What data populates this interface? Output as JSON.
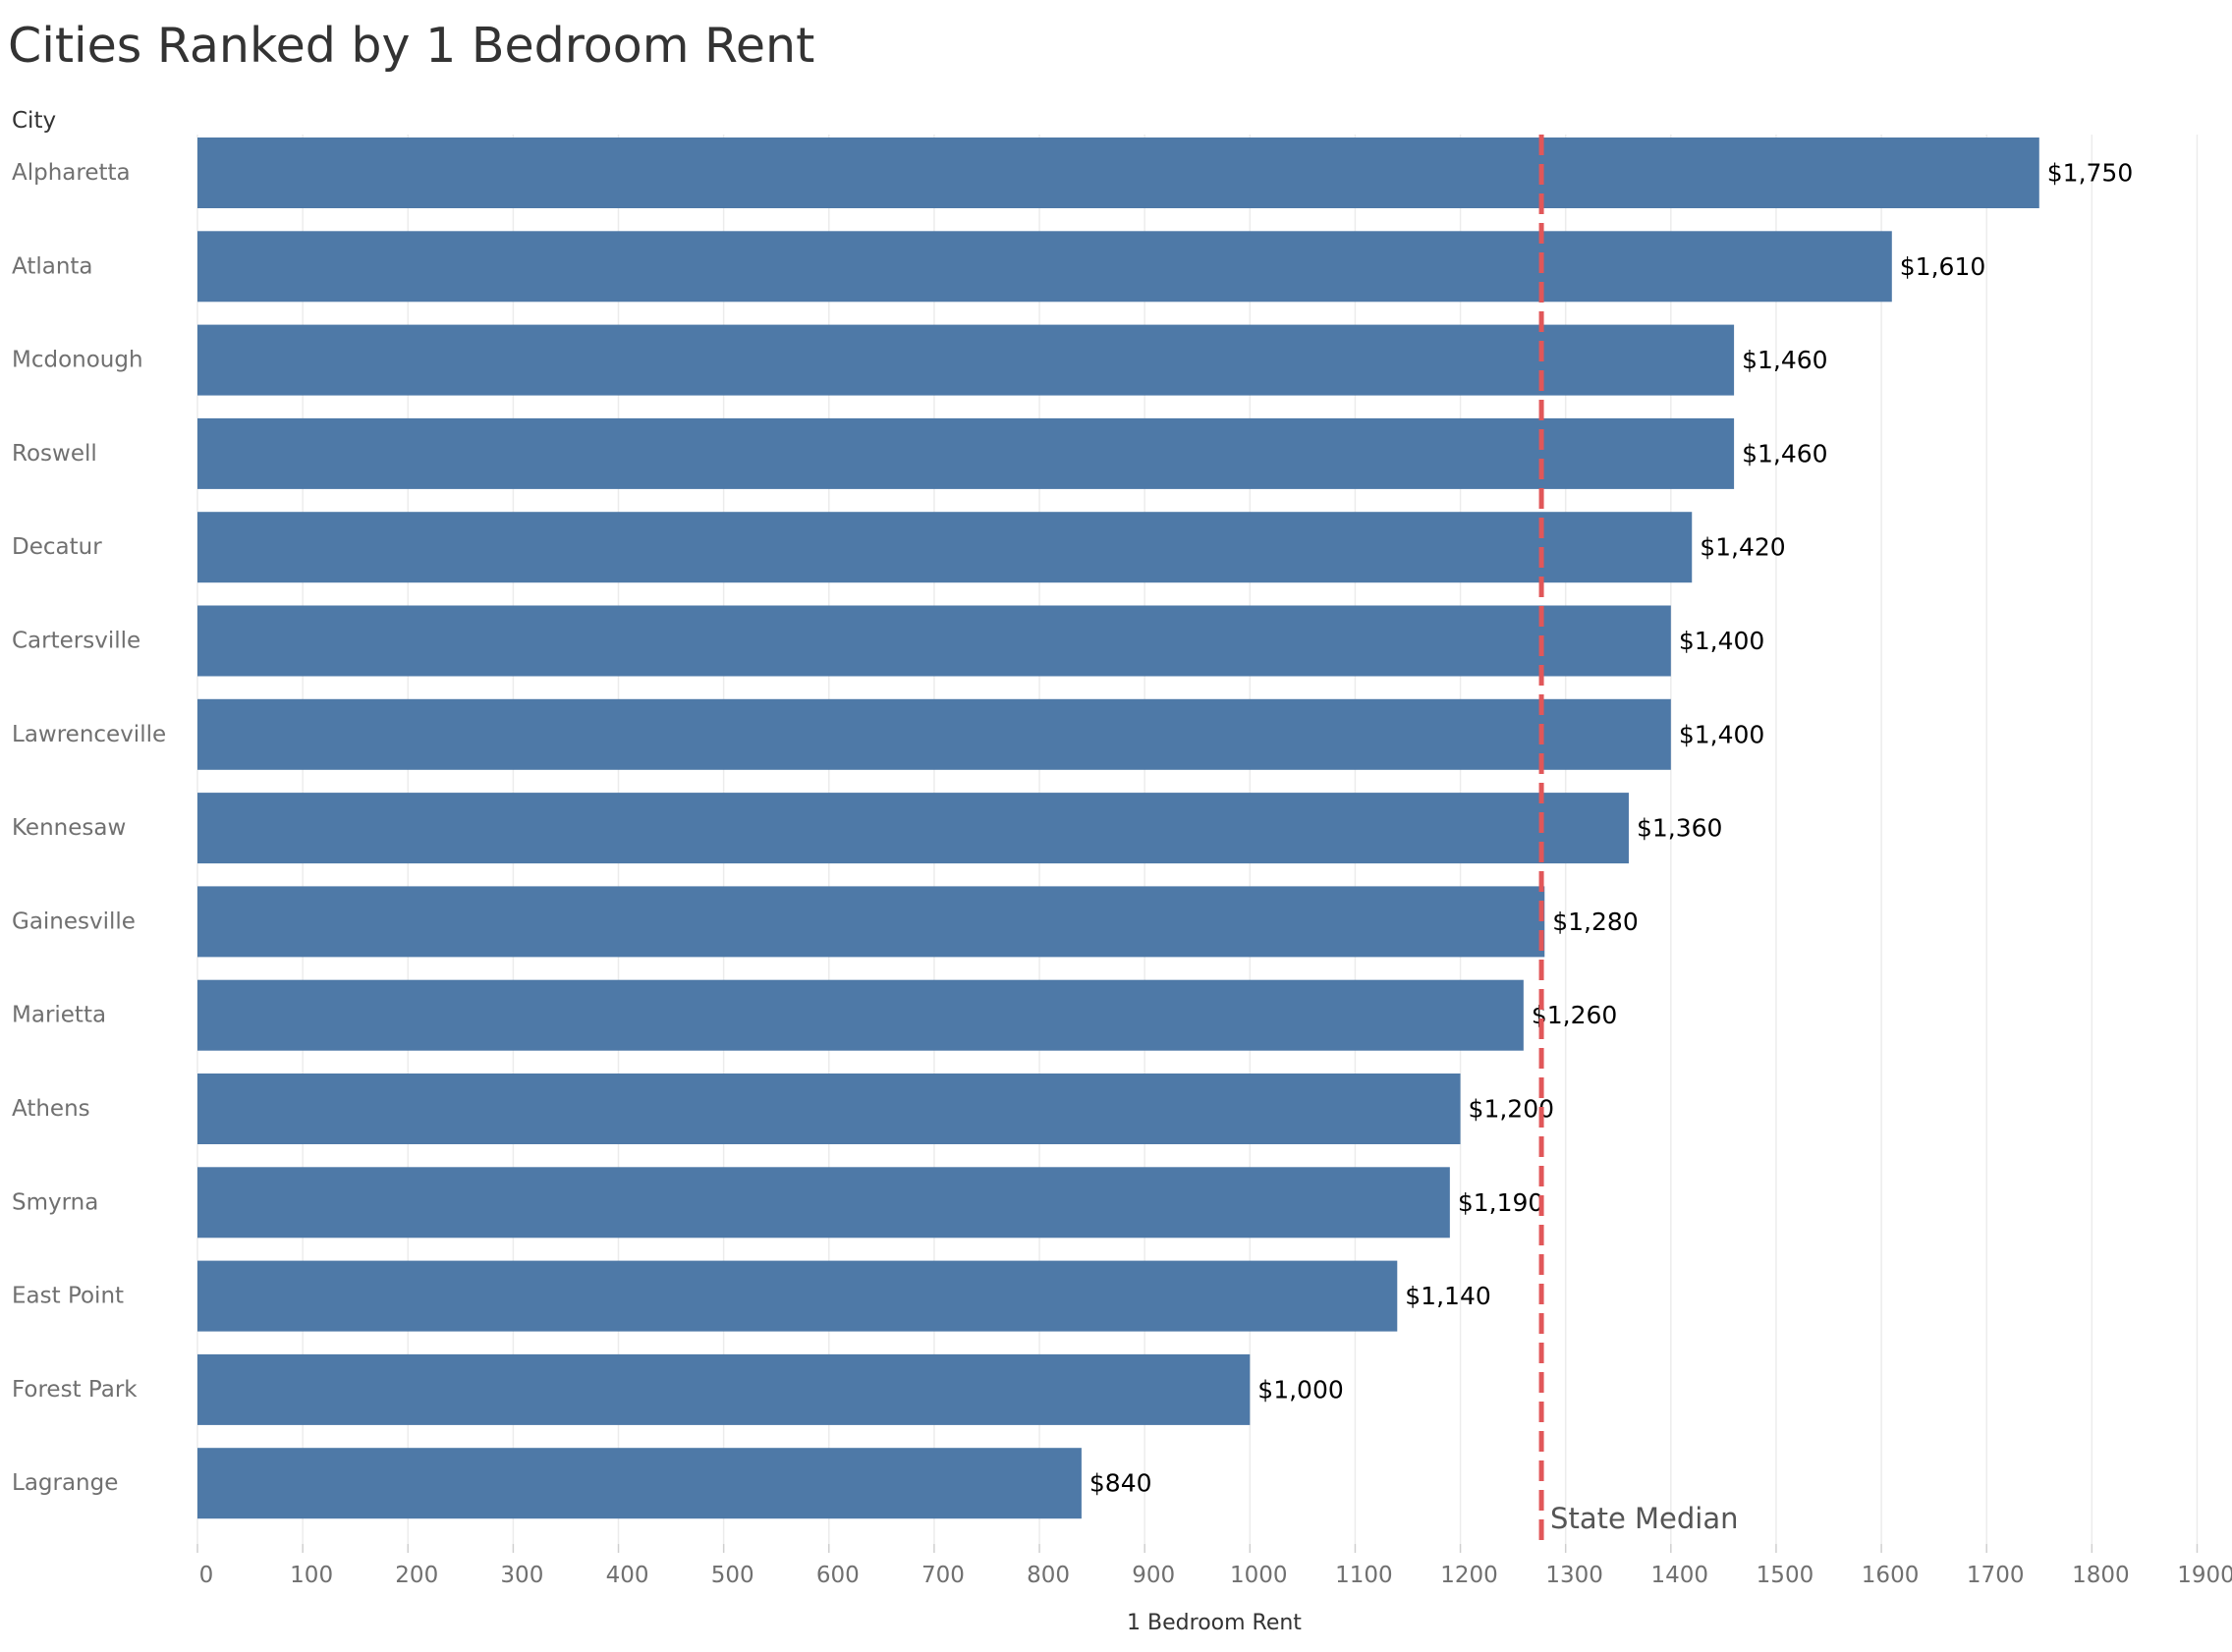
{
  "chart_data": {
    "type": "bar",
    "orientation": "horizontal",
    "title": "Cities Ranked by 1 Bedroom Rent",
    "ylabel": "City",
    "xlabel": "1 Bedroom Rent",
    "categories": [
      "Alpharetta",
      "Atlanta",
      "Mcdonough",
      "Roswell",
      "Decatur",
      "Cartersville",
      "Lawrenceville",
      "Kennesaw",
      "Gainesville",
      "Marietta",
      "Athens",
      "Smyrna",
      "East Point",
      "Forest Park",
      "Lagrange"
    ],
    "values": [
      1750,
      1610,
      1460,
      1460,
      1420,
      1400,
      1400,
      1360,
      1280,
      1260,
      1200,
      1190,
      1140,
      1000,
      840
    ],
    "data_labels": [
      "$1,750",
      "$1,610",
      "$1,460",
      "$1,460",
      "$1,420",
      "$1,400",
      "$1,400",
      "$1,360",
      "$1,280",
      "$1,260",
      "$1,200",
      "$1,190",
      "$1,140",
      "$1,000",
      "$840"
    ],
    "xlim": [
      0,
      1900
    ],
    "x_ticks": [
      0,
      100,
      200,
      300,
      400,
      500,
      600,
      700,
      800,
      900,
      1000,
      1100,
      1200,
      1300,
      1400,
      1500,
      1600,
      1700,
      1800,
      1900
    ],
    "reference_line": {
      "label": "State Median",
      "value": 1277,
      "color": "#e15759",
      "style": "dashed"
    },
    "bar_color": "#4e79a7",
    "grid": "vertical"
  }
}
